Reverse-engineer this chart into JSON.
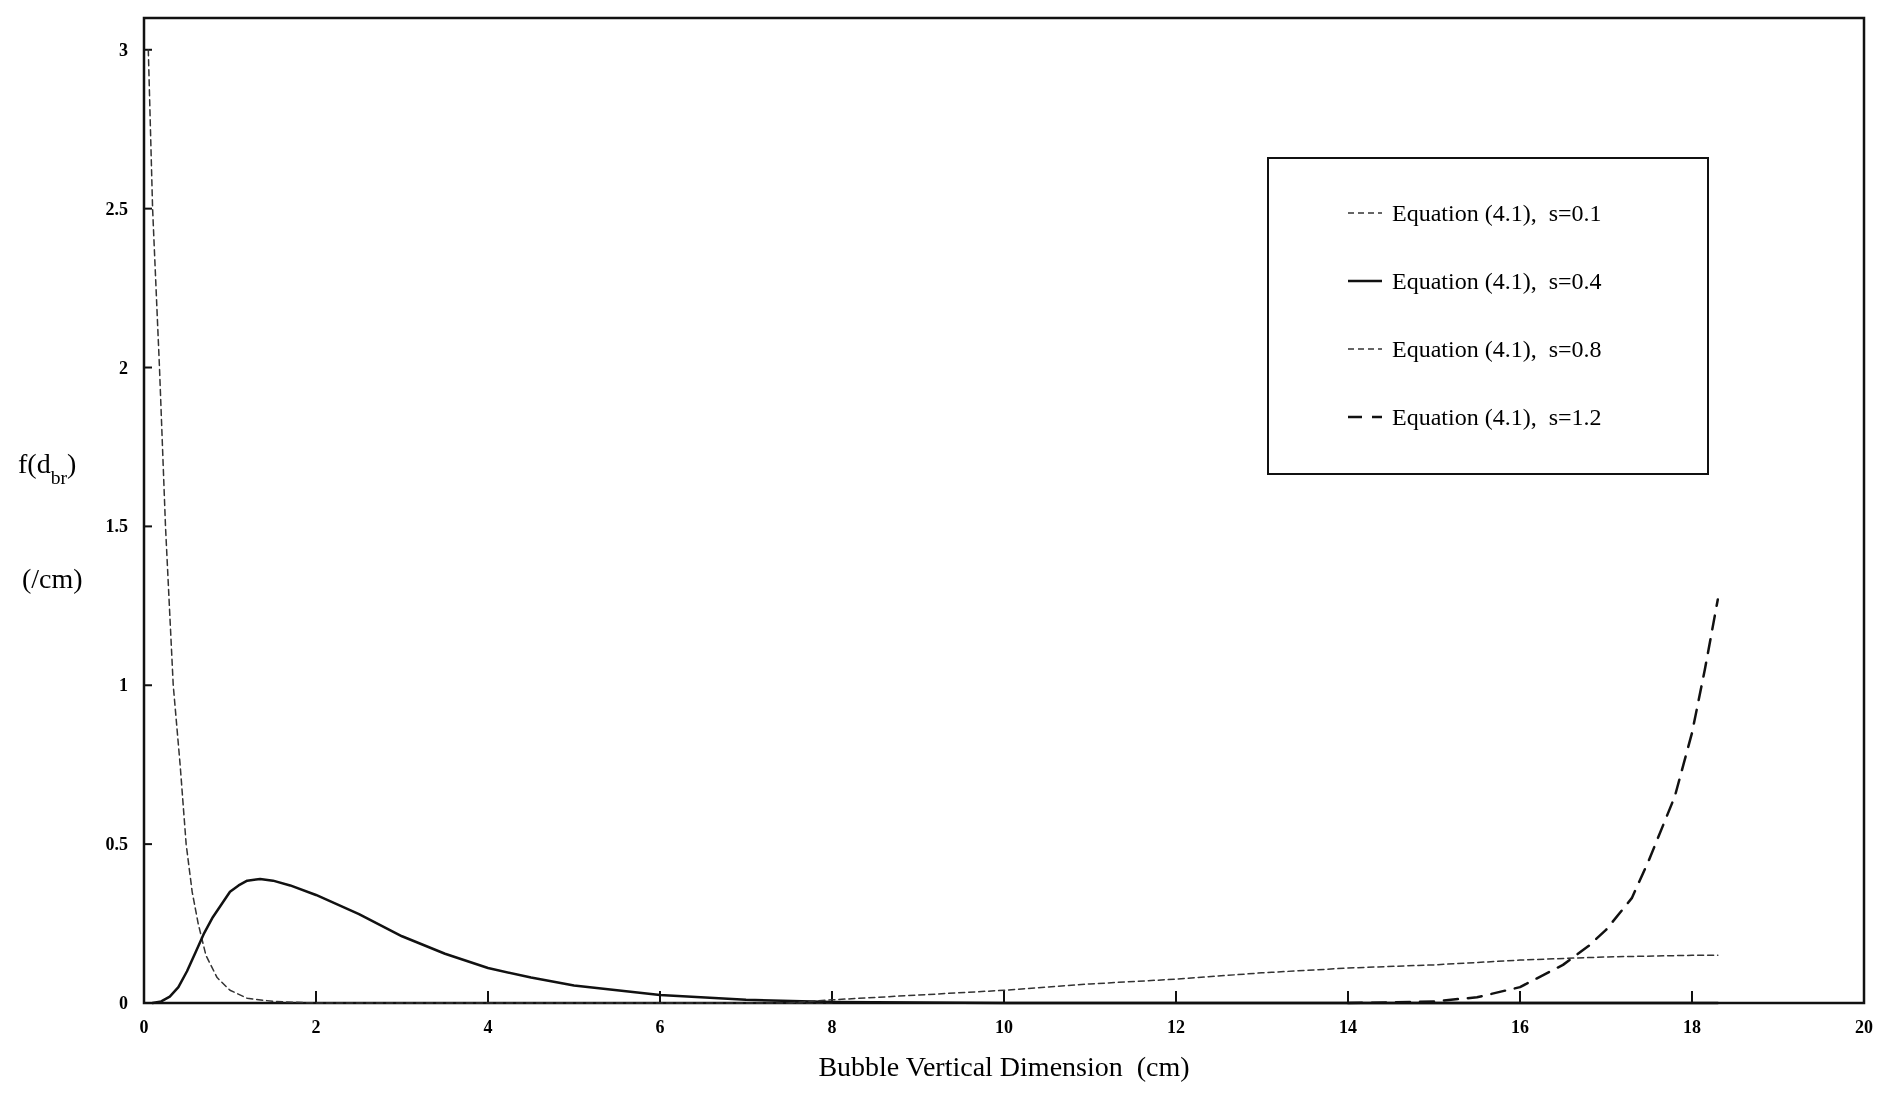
{
  "chart_data": {
    "type": "line",
    "xlabel": "Bubble Vertical Dimension  (cm)",
    "ylabel": "f(d$_{br}$) (/cm)",
    "xlim": [
      0,
      20
    ],
    "xticks": [
      0,
      2,
      4,
      6,
      8,
      10,
      12,
      14,
      16,
      18,
      20
    ],
    "ylim": [
      0,
      3.1
    ],
    "yticks": [
      0,
      0.5,
      1,
      1.5,
      2,
      2.5,
      3
    ],
    "grid": false,
    "legend": "top right",
    "marker": "none",
    "series": [
      {
        "name": "Equation (4.1),  s=0.1",
        "color": "#333333",
        "line_style": "dotted",
        "x": [
          0.05,
          0.1,
          0.18,
          0.25,
          0.34,
          0.42,
          0.49,
          0.56,
          0.63,
          0.72,
          0.85,
          1.0,
          1.2,
          1.5,
          2,
          3,
          4,
          6,
          8
        ],
        "values": [
          3.0,
          2.5,
          2.0,
          1.5,
          1.0,
          0.75,
          0.5,
          0.35,
          0.25,
          0.15,
          0.08,
          0.04,
          0.015,
          0.005,
          0,
          0,
          0,
          0,
          0
        ]
      },
      {
        "name": "Equation (4.1),  s=0.4",
        "color": "#111111",
        "line_style": "solid",
        "x": [
          0.1,
          0.2,
          0.3,
          0.4,
          0.5,
          0.6,
          0.7,
          0.8,
          0.9,
          1.0,
          1.1,
          1.2,
          1.35,
          1.5,
          1.7,
          2,
          2.5,
          3,
          3.5,
          4,
          4.5,
          5,
          6,
          7,
          8,
          10,
          12,
          14,
          16,
          18,
          18.3
        ],
        "values": [
          0,
          0.005,
          0.02,
          0.05,
          0.1,
          0.16,
          0.22,
          0.27,
          0.31,
          0.35,
          0.37,
          0.385,
          0.39,
          0.385,
          0.37,
          0.34,
          0.28,
          0.21,
          0.155,
          0.11,
          0.08,
          0.055,
          0.025,
          0.01,
          0.003,
          0,
          0,
          0,
          0,
          0,
          0
        ]
      },
      {
        "name": "Equation (4.1),  s=0.8",
        "color": "#333333",
        "line_style": "dotted",
        "x": [
          7.5,
          8,
          9,
          10,
          11,
          12,
          13,
          14,
          15,
          16,
          17,
          18,
          18.3
        ],
        "values": [
          0,
          0.01,
          0.025,
          0.04,
          0.06,
          0.075,
          0.095,
          0.11,
          0.12,
          0.135,
          0.145,
          0.15,
          0.15
        ]
      },
      {
        "name": "Equation (4.1),  s=1.2",
        "color": "#111111",
        "line_style": "dashed",
        "x": [
          14,
          14.5,
          15,
          15.5,
          16,
          16.5,
          16.8,
          17,
          17.3,
          17.5,
          17.8,
          18,
          18.15,
          18.3
        ],
        "values": [
          0,
          0.002,
          0.005,
          0.018,
          0.05,
          0.12,
          0.18,
          0.23,
          0.33,
          0.45,
          0.65,
          0.85,
          1.05,
          1.27
        ]
      }
    ]
  }
}
